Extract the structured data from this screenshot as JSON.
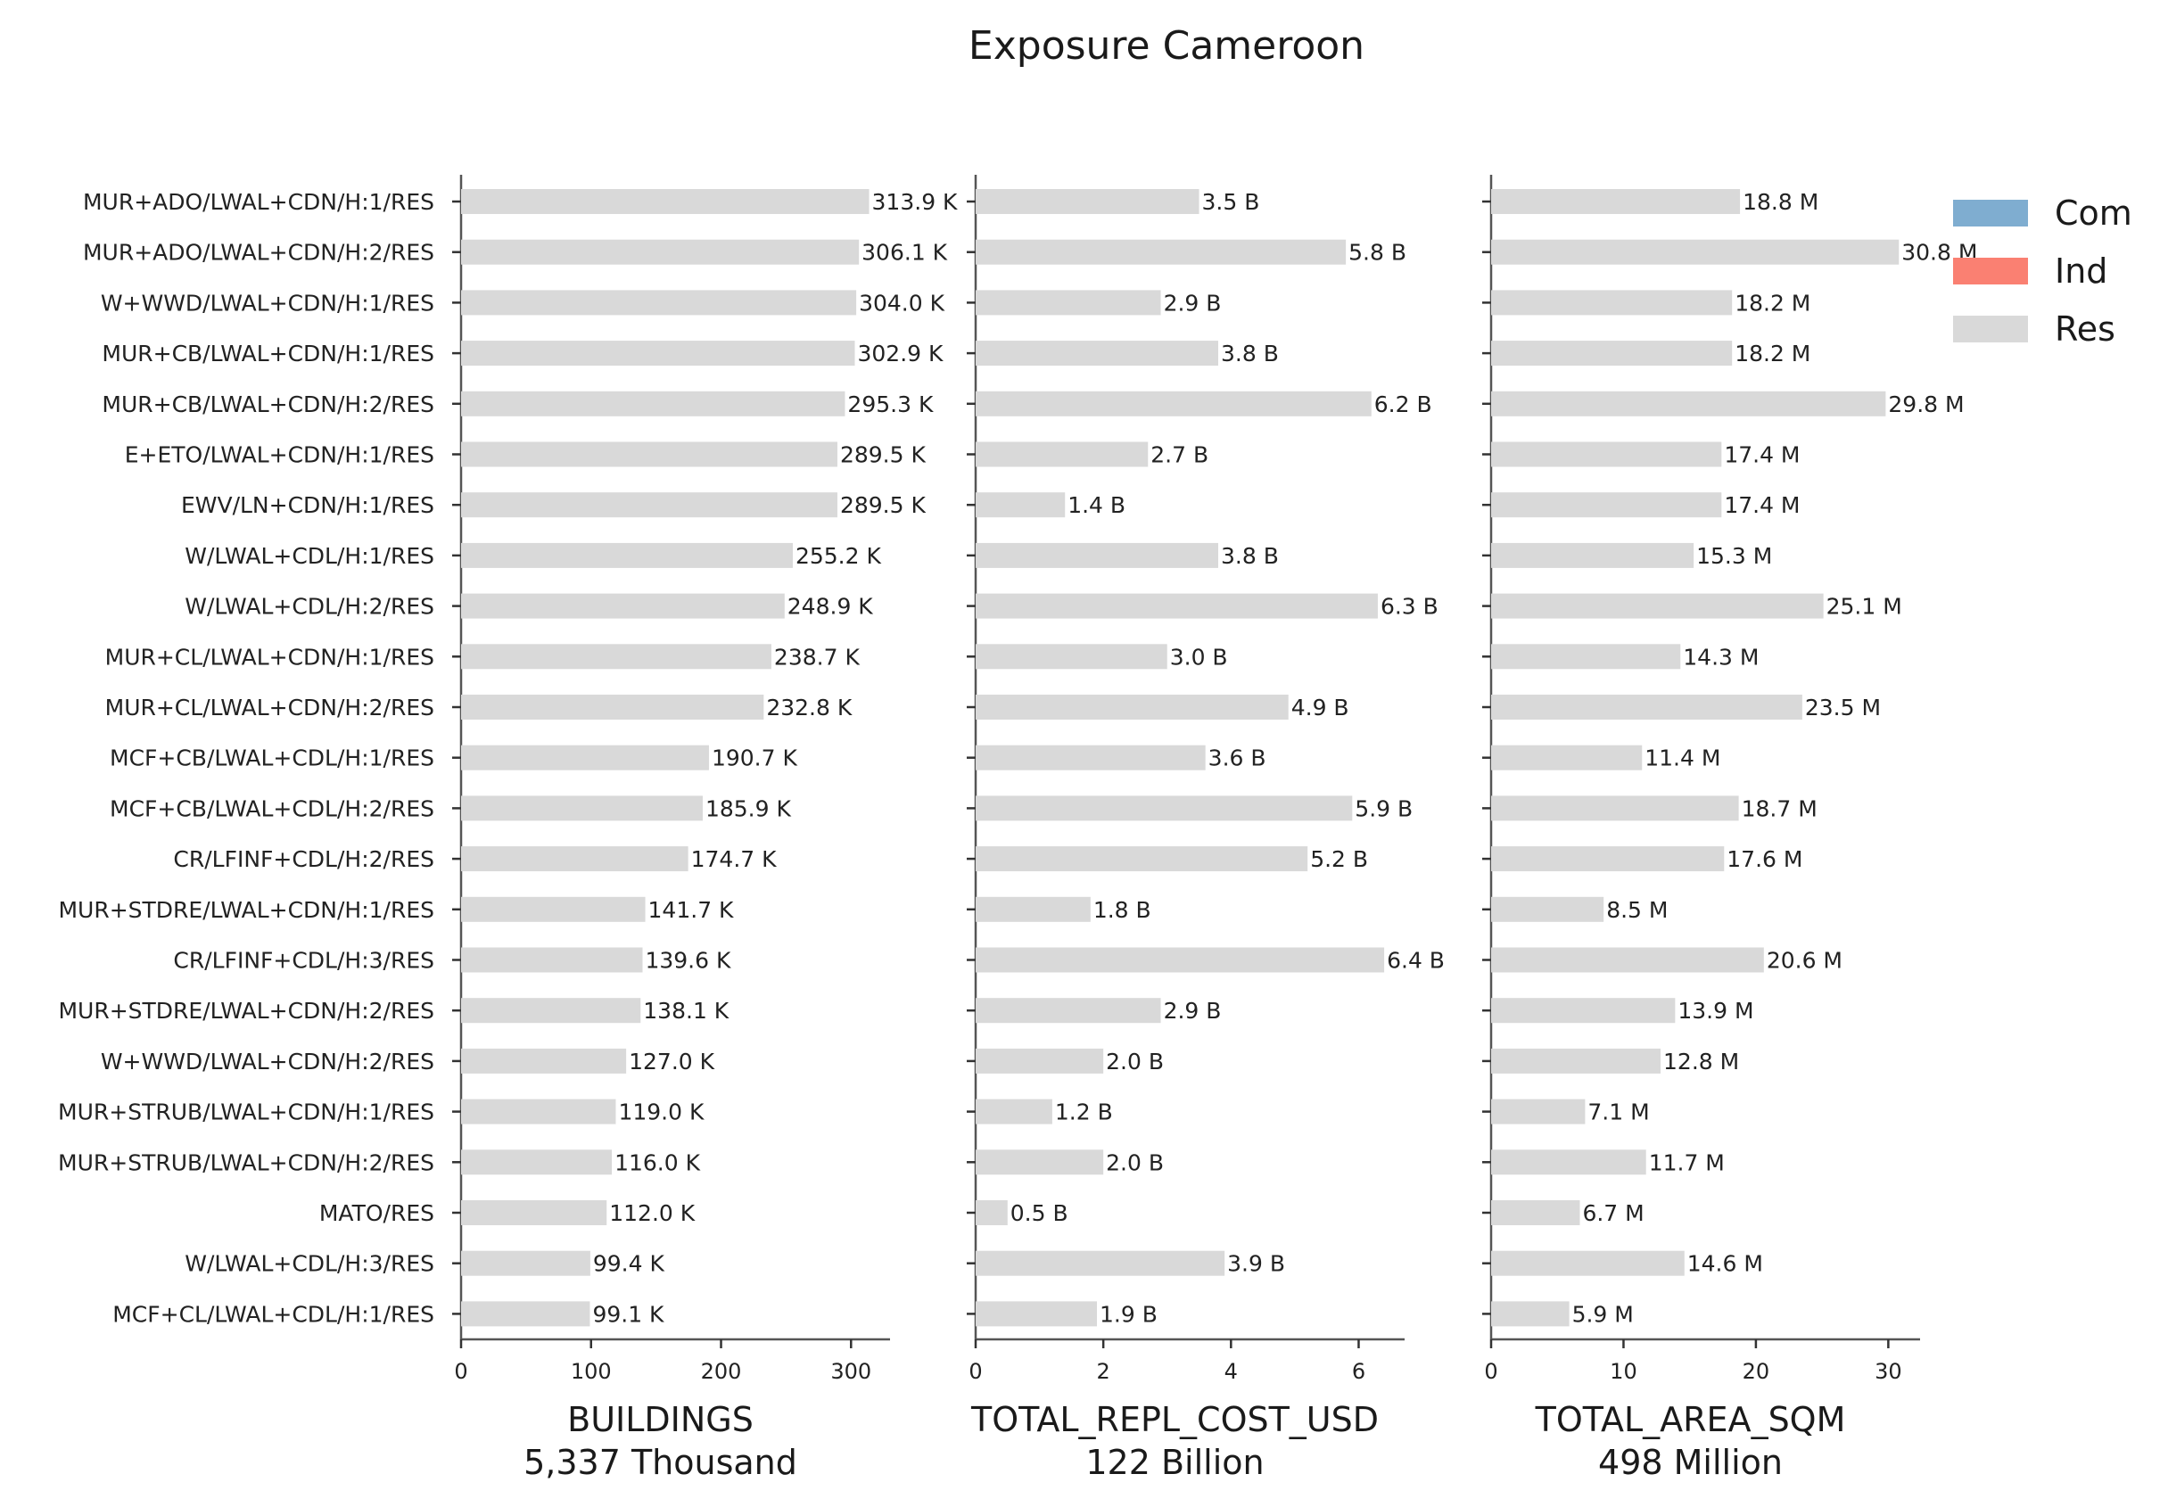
{
  "chart_data": {
    "type": "bar",
    "orientation": "horizontal",
    "title": "Exposure Cameroon",
    "categories": [
      "MUR+ADO/LWAL+CDN/H:1/RES",
      "MUR+ADO/LWAL+CDN/H:2/RES",
      "W+WWD/LWAL+CDN/H:1/RES",
      "MUR+CB/LWAL+CDN/H:1/RES",
      "MUR+CB/LWAL+CDN/H:2/RES",
      "E+ETO/LWAL+CDN/H:1/RES",
      "EWV/LN+CDN/H:1/RES",
      "W/LWAL+CDL/H:1/RES",
      "W/LWAL+CDL/H:2/RES",
      "MUR+CL/LWAL+CDN/H:1/RES",
      "MUR+CL/LWAL+CDN/H:2/RES",
      "MCF+CB/LWAL+CDL/H:1/RES",
      "MCF+CB/LWAL+CDL/H:2/RES",
      "CR/LFINF+CDL/H:2/RES",
      "MUR+STDRE/LWAL+CDN/H:1/RES",
      "CR/LFINF+CDL/H:3/RES",
      "MUR+STDRE/LWAL+CDN/H:2/RES",
      "W+WWD/LWAL+CDN/H:2/RES",
      "MUR+STRUB/LWAL+CDN/H:1/RES",
      "MUR+STRUB/LWAL+CDN/H:2/RES",
      "MATO/RES",
      "W/LWAL+CDL/H:3/RES",
      "MCF+CL/LWAL+CDL/H:1/RES"
    ],
    "panels": [
      {
        "xlabel": "BUILDINGS",
        "total": "5,337 Thousand",
        "unit_suffix": "K",
        "values": [
          313.9,
          306.1,
          304.0,
          302.9,
          295.3,
          289.5,
          289.5,
          255.2,
          248.9,
          238.7,
          232.8,
          190.7,
          185.9,
          174.7,
          141.7,
          139.6,
          138.1,
          127.0,
          119.0,
          116.0,
          112.0,
          99.4,
          99.1
        ],
        "xlim": [
          0,
          330
        ],
        "xticks": [
          0,
          100,
          200,
          300
        ]
      },
      {
        "xlabel": "TOTAL_REPL_COST_USD",
        "total": "122 Billion",
        "unit_suffix": "B",
        "values": [
          3.5,
          5.8,
          2.9,
          3.8,
          6.2,
          2.7,
          1.4,
          3.8,
          6.3,
          3.0,
          4.9,
          3.6,
          5.9,
          5.2,
          1.8,
          6.4,
          2.9,
          2.0,
          1.2,
          2.0,
          0.5,
          3.9,
          1.9
        ],
        "xlim": [
          0,
          6.72
        ],
        "xticks": [
          0,
          2,
          4,
          6
        ]
      },
      {
        "xlabel": "TOTAL_AREA_SQM",
        "total": "498 Million",
        "unit_suffix": "M",
        "values": [
          18.8,
          30.8,
          18.2,
          18.2,
          29.8,
          17.4,
          17.4,
          15.3,
          25.1,
          14.3,
          23.5,
          11.4,
          18.7,
          17.6,
          8.5,
          20.6,
          13.9,
          12.8,
          7.1,
          11.7,
          6.7,
          14.6,
          5.9
        ],
        "xlim": [
          0,
          32.4
        ],
        "xticks": [
          0,
          10,
          20,
          30
        ]
      }
    ],
    "legend": {
      "position": "top-right",
      "entries": [
        {
          "label": "Com",
          "color": "#7fadd0"
        },
        {
          "label": "Ind",
          "color": "#fa8072"
        },
        {
          "label": "Res",
          "color": "#d9d9d9"
        }
      ]
    },
    "bar_color": "#d9d9d9",
    "grid": false
  }
}
